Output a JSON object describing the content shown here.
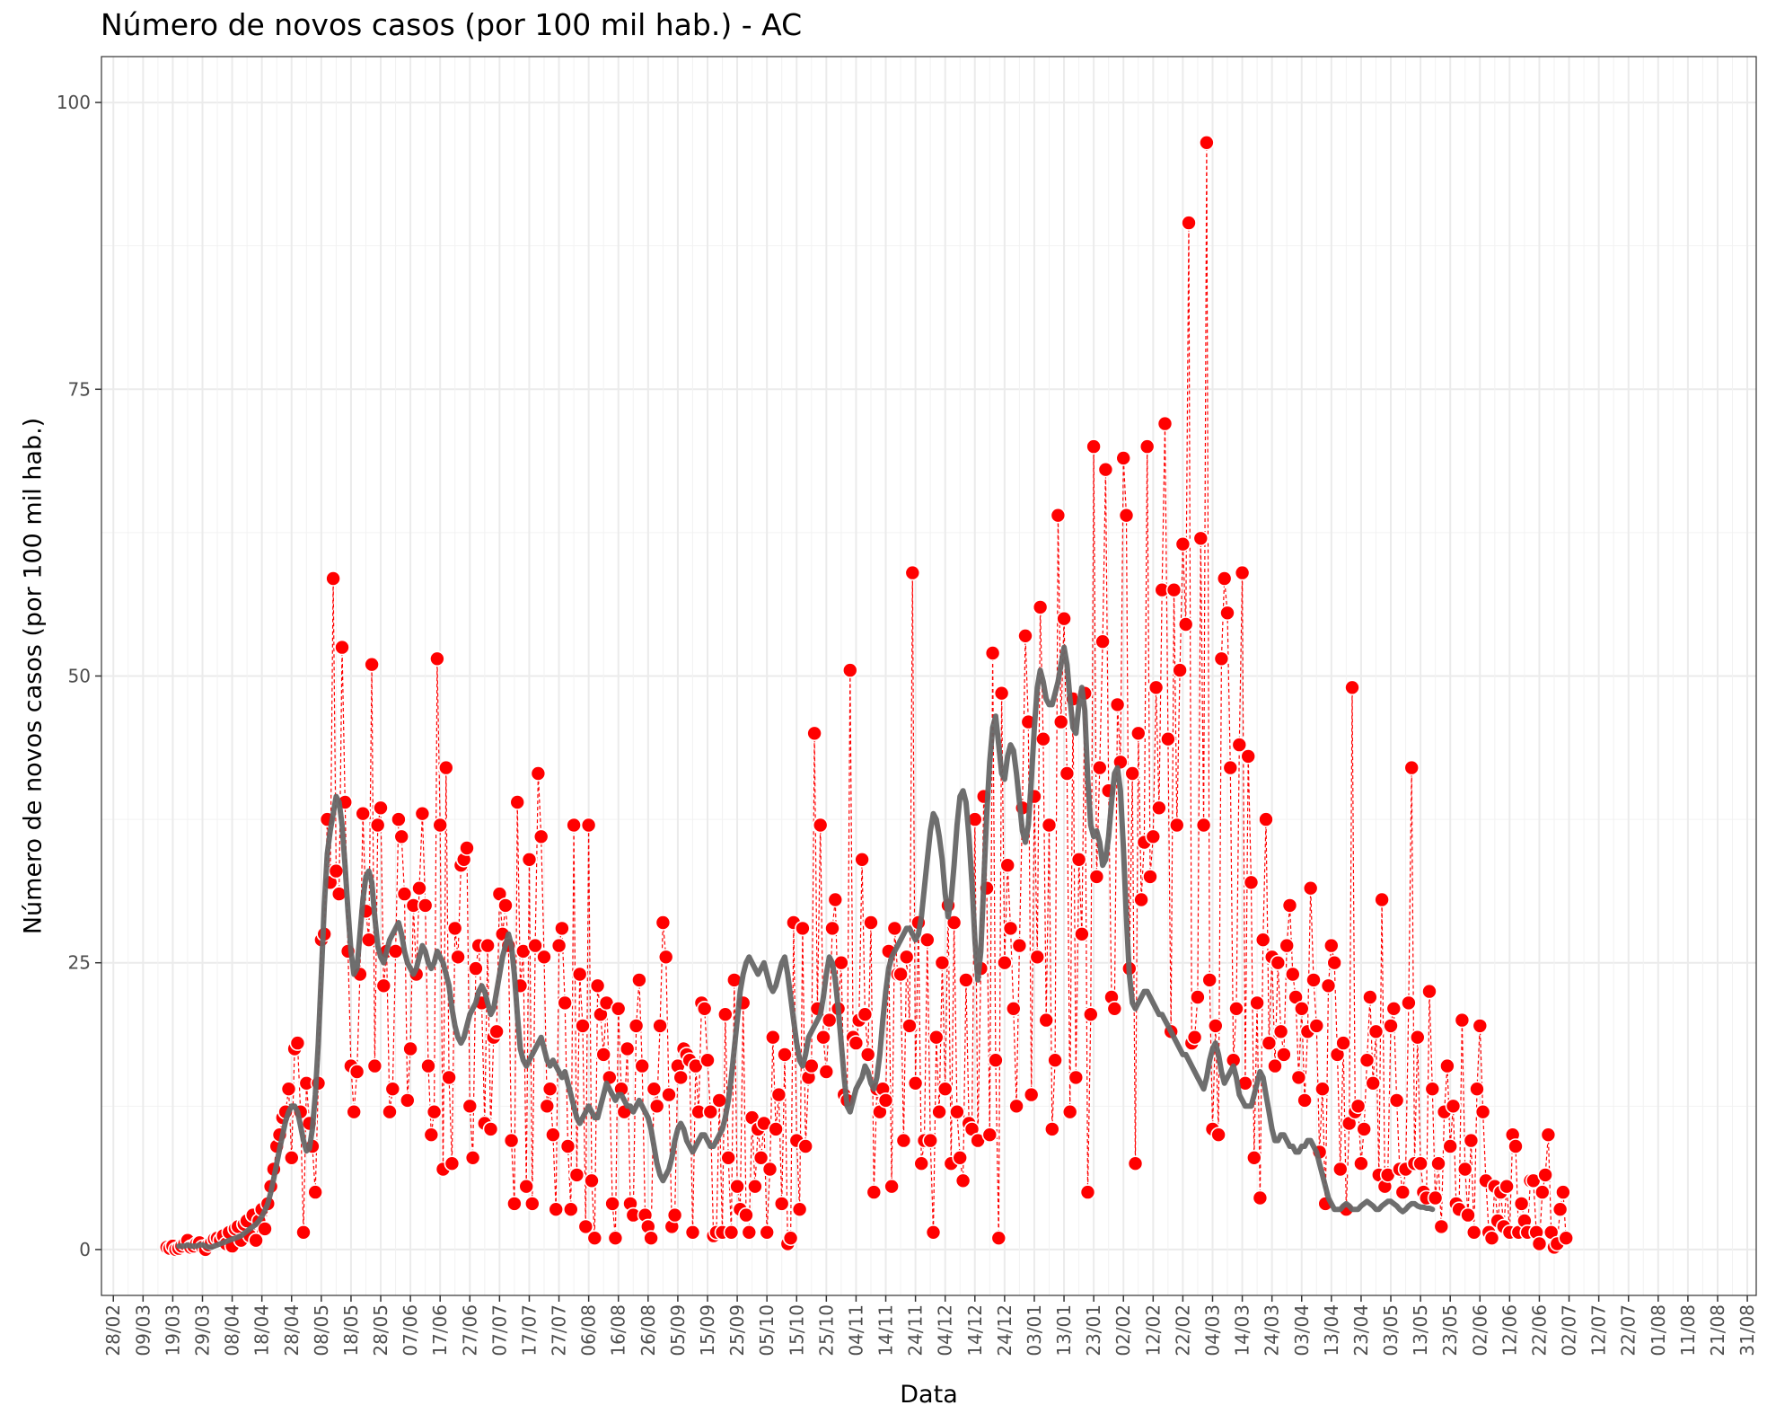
{
  "chart_data": {
    "type": "line",
    "title": "Número de novos casos (por 100 mil hab.) - AC",
    "xlabel": "Data",
    "ylabel": "Número de novos casos (por 100 mil hab.)",
    "ylim": [
      0,
      100
    ],
    "yticks": [
      0,
      25,
      50,
      75,
      100
    ],
    "xlim": [
      "2020-02-24",
      "2021-09-03"
    ],
    "xticks": [
      "2020-02-28",
      "2020-03-09",
      "2020-03-19",
      "2020-03-29",
      "2020-04-08",
      "2020-04-18",
      "2020-04-28",
      "2020-05-08",
      "2020-05-18",
      "2020-05-28",
      "2020-06-07",
      "2020-06-17",
      "2020-06-27",
      "2020-07-07",
      "2020-07-17",
      "2020-07-27",
      "2020-08-06",
      "2020-08-16",
      "2020-08-26",
      "2020-09-05",
      "2020-09-15",
      "2020-09-25",
      "2020-10-05",
      "2020-10-15",
      "2020-10-25",
      "2020-11-04",
      "2020-11-14",
      "2020-11-24",
      "2020-12-04",
      "2020-12-14",
      "2020-12-24",
      "2021-01-03",
      "2021-01-13",
      "2021-01-23",
      "2021-02-02",
      "2021-02-12",
      "2021-02-22",
      "2021-03-04",
      "2021-03-14",
      "2021-03-24",
      "2021-04-03",
      "2021-04-13",
      "2021-04-23",
      "2021-05-03",
      "2021-05-13",
      "2021-05-23",
      "2021-06-02",
      "2021-06-12",
      "2021-06-22",
      "2021-07-02",
      "2021-07-12",
      "2021-07-22",
      "2021-08-01",
      "2021-08-11",
      "2021-08-21",
      "2021-08-31"
    ],
    "xtick_labels": [
      "28/02",
      "09/03",
      "19/03",
      "29/03",
      "08/04",
      "18/04",
      "28/04",
      "08/05",
      "18/05",
      "28/05",
      "07/06",
      "17/06",
      "27/06",
      "07/07",
      "17/07",
      "27/07",
      "06/08",
      "16/08",
      "26/08",
      "05/09",
      "15/09",
      "25/09",
      "05/10",
      "15/10",
      "25/10",
      "04/11",
      "14/11",
      "24/11",
      "04/12",
      "14/12",
      "24/12",
      "03/01",
      "13/01",
      "23/01",
      "02/02",
      "12/02",
      "22/02",
      "04/03",
      "14/03",
      "24/03",
      "03/04",
      "13/04",
      "23/04",
      "03/05",
      "13/05",
      "23/05",
      "02/06",
      "12/06",
      "22/06",
      "02/07",
      "12/07",
      "22/07",
      "01/08",
      "11/08",
      "21/08",
      "31/08"
    ],
    "grid": true,
    "legend": "none",
    "series": [
      {
        "style": "points-with-dashed-line",
        "color": "#ff0000",
        "x_start": "2020-03-17",
        "x_step_days": 1,
        "values": [
          0.2,
          0.1,
          0.3,
          0.0,
          0.1,
          0.3,
          0.5,
          0.8,
          0.2,
          0.3,
          0.5,
          0.6,
          0.2,
          0.0,
          0.4,
          0.6,
          0.9,
          1.0,
          0.8,
          1.2,
          0.5,
          1.5,
          0.3,
          1.8,
          2.0,
          0.8,
          2.2,
          2.5,
          1.2,
          3.0,
          0.8,
          2.5,
          3.5,
          1.8,
          4.0,
          5.5,
          7.0,
          9.0,
          10.0,
          11.5,
          12.0,
          14.0,
          8.0,
          17.5,
          18.0,
          12.0,
          1.5,
          14.5,
          11.0,
          9.0,
          5.0,
          14.5,
          27.0,
          27.5,
          37.5,
          32.0,
          58.5,
          33.0,
          31.0,
          52.5,
          39.0,
          26.0,
          16.0,
          12.0,
          15.5,
          24.0,
          38.0,
          29.5,
          27.0,
          51.0,
          16.0,
          37.0,
          38.5,
          23.0,
          26.0,
          12.0,
          14.0,
          26.0,
          37.5,
          36.0,
          31.0,
          13.0,
          17.5,
          30.0,
          24.0,
          31.5,
          38.0,
          30.0,
          16.0,
          10.0,
          12.0,
          51.5,
          37.0,
          7.0,
          42.0,
          15.0,
          7.5,
          28.0,
          25.5,
          33.5,
          34.0,
          35.0,
          12.5,
          8.0,
          24.5,
          26.5,
          21.5,
          11.0,
          26.5,
          10.5,
          18.5,
          19.0,
          31.0,
          27.5,
          30.0,
          26.5,
          9.5,
          4.0,
          39.0,
          23.0,
          26.0,
          5.5,
          34.0,
          4.0,
          26.5,
          41.5,
          36.0,
          25.5,
          12.5,
          14.0,
          10.0,
          3.5,
          26.5,
          28.0,
          21.5,
          9.0,
          3.5,
          37.0,
          6.5,
          24.0,
          19.5,
          2.0,
          37.0,
          6.0,
          1.0,
          23.0,
          20.5,
          17.0,
          21.5,
          15.0,
          4.0,
          1.0,
          21.0,
          14.0,
          12.0,
          17.5,
          4.0,
          3.0,
          19.5,
          23.5,
          16.0,
          3.0,
          2.0,
          1.0,
          14.0,
          12.5,
          19.5,
          28.5,
          25.5,
          13.5,
          2.0,
          3.0,
          16.0,
          15.0,
          17.5,
          17.0,
          16.5,
          1.5,
          16.0,
          12.0,
          21.5,
          21.0,
          16.5,
          12.0,
          1.2,
          1.5,
          13.0,
          1.5,
          20.5,
          8.0,
          1.5,
          23.5,
          5.5,
          3.5,
          21.5,
          3.0,
          1.5,
          11.5,
          5.5,
          10.5,
          8.0,
          11.0,
          1.5,
          7.0,
          18.5,
          10.5,
          13.5,
          4.0,
          17.0,
          0.5,
          1.0,
          28.5,
          9.5,
          3.5,
          28.0,
          9.0,
          15.0,
          16.0,
          45.0,
          21.0,
          37.0,
          18.5,
          15.5,
          20.0,
          28.0,
          30.5,
          21.0,
          25.0,
          13.5,
          13.0,
          50.5,
          18.5,
          18.0,
          20.0,
          34.0,
          20.5,
          17.0,
          28.5,
          5.0,
          14.0,
          12.0,
          14.0,
          13.0,
          26.0,
          5.5,
          28.0,
          24.0,
          24.0,
          9.5,
          25.5,
          19.5,
          59.0,
          14.5,
          28.5,
          7.5,
          9.5,
          27.0,
          9.5,
          1.5,
          18.5,
          12.0,
          25.0,
          14.0,
          30.0,
          7.5,
          28.5,
          12.0,
          8.0,
          6.0,
          23.5,
          11.0,
          10.5,
          37.5,
          9.5,
          24.5,
          39.5,
          31.5,
          10.0,
          52.0,
          16.5,
          1.0,
          48.5,
          25.0,
          33.5,
          28.0,
          21.0,
          12.5,
          26.5,
          38.5,
          53.5,
          46.0,
          13.5,
          39.5,
          25.5,
          56.0,
          44.5,
          20.0,
          37.0,
          10.5,
          16.5,
          64.0,
          46.0,
          55.0,
          41.5,
          12.0,
          48.0,
          15.0,
          34.0,
          27.5,
          48.5,
          5.0,
          20.5,
          70.0,
          32.5,
          42.0,
          53.0,
          68.0,
          40.0,
          22.0,
          21.0,
          47.5,
          42.5,
          69.0,
          64.0,
          24.5,
          41.5,
          7.5,
          45.0,
          30.5,
          35.5,
          70.0,
          32.5,
          36.0,
          49.0,
          38.5,
          57.5,
          72.0,
          44.5,
          19.0,
          57.5,
          37.0,
          50.5,
          61.5,
          54.5,
          89.5,
          18.0,
          18.5,
          22.0,
          62.0,
          37.0,
          96.5,
          23.5,
          10.5,
          19.5,
          10.0,
          51.5,
          58.5,
          55.5,
          42.0,
          16.5,
          21.0,
          44.0,
          59.0,
          14.5,
          43.0,
          32.0,
          8.0,
          21.5,
          4.5,
          27.0,
          37.5,
          18.0,
          25.5,
          16.0,
          25.0,
          19.0,
          17.0,
          26.5,
          30.0,
          24.0,
          22.0,
          15.0,
          21.0,
          13.0,
          19.0,
          31.5,
          23.5,
          19.5,
          8.5,
          14.0,
          4.0,
          23.0,
          26.5,
          25.0,
          17.0,
          7.0,
          18.0,
          3.5,
          11.0,
          49.0,
          12.0,
          12.5,
          7.5,
          10.5,
          16.5,
          22.0,
          14.5,
          19.0,
          6.5,
          30.5,
          5.5,
          6.5,
          19.5,
          21.0,
          13.0,
          7.0,
          5.0,
          7.0,
          21.5,
          42.0,
          7.5,
          18.5,
          7.5,
          5.0,
          4.5,
          22.5,
          14.0,
          4.5,
          7.5,
          2.0,
          12.0,
          16.0,
          9.0,
          12.5,
          4.0,
          3.5,
          20.0,
          7.0,
          3.0,
          9.5,
          1.5,
          14.0,
          19.5,
          12.0,
          6.0,
          1.5,
          1.0,
          5.5,
          2.5,
          5.0,
          2.0,
          5.5,
          1.5,
          10.0,
          9.0,
          1.5,
          4.0,
          2.5,
          1.5,
          6.0,
          6.0,
          1.5,
          0.5,
          5.0,
          6.5,
          10.0,
          1.5,
          0.2,
          0.5,
          3.5,
          5.0,
          1.0
        ]
      },
      {
        "style": "moving-average-line",
        "color": "#666666",
        "x_start": "2020-03-21",
        "x_step_days": 1,
        "values": [
          0.3,
          0.3,
          0.3,
          0.4,
          0.3,
          0.3,
          0.3,
          0.4,
          0.4,
          0.3,
          0.2,
          0.2,
          0.3,
          0.4,
          0.5,
          0.6,
          0.7,
          0.8,
          0.9,
          1.0,
          1.1,
          1.2,
          1.4,
          1.6,
          1.8,
          2.0,
          2.2,
          2.5,
          2.9,
          3.4,
          4.0,
          5.0,
          6.2,
          7.5,
          8.8,
          10.0,
          11.2,
          12.0,
          12.5,
          12.5,
          12.0,
          10.8,
          9.5,
          8.6,
          8.8,
          10.5,
          13.5,
          18.0,
          24.0,
          30.0,
          34.5,
          36.5,
          38.0,
          39.5,
          39.0,
          37.0,
          33.5,
          29.5,
          26.0,
          24.0,
          24.5,
          27.5,
          30.5,
          32.5,
          33.0,
          32.0,
          29.0,
          26.5,
          25.5,
          25.0,
          26.0,
          27.0,
          27.5,
          28.0,
          28.5,
          27.5,
          26.0,
          25.0,
          24.5,
          24.0,
          24.5,
          25.5,
          26.5,
          26.0,
          25.0,
          24.5,
          25.0,
          26.0,
          25.5,
          25.0,
          24.0,
          23.0,
          21.0,
          19.5,
          18.5,
          18.0,
          18.5,
          19.5,
          20.5,
          21.0,
          21.5,
          22.5,
          23.0,
          22.5,
          21.5,
          20.5,
          21.0,
          22.5,
          24.0,
          25.5,
          26.5,
          27.5,
          26.5,
          24.0,
          20.5,
          17.5,
          16.5,
          16.0,
          16.5,
          17.0,
          17.5,
          18.0,
          18.5,
          17.5,
          16.5,
          16.0,
          16.5,
          16.0,
          15.5,
          15.0,
          15.5,
          14.5,
          13.5,
          12.5,
          11.5,
          11.0,
          11.5,
          12.0,
          12.5,
          12.0,
          11.5,
          11.5,
          12.5,
          13.5,
          14.5,
          14.0,
          13.5,
          13.0,
          13.5,
          13.5,
          13.0,
          12.5,
          12.5,
          12.0,
          12.5,
          13.0,
          12.5,
          12.0,
          11.5,
          10.5,
          9.0,
          7.5,
          6.5,
          6.0,
          6.5,
          7.0,
          8.0,
          9.5,
          10.5,
          11.0,
          10.5,
          9.5,
          9.0,
          8.5,
          9.0,
          9.5,
          10.0,
          10.0,
          9.5,
          9.0,
          9.0,
          9.5,
          10.0,
          10.5,
          11.5,
          13.0,
          15.0,
          17.5,
          20.0,
          22.5,
          24.0,
          25.0,
          25.5,
          25.0,
          24.5,
          24.0,
          24.5,
          25.0,
          24.0,
          23.0,
          22.5,
          23.0,
          24.0,
          25.0,
          25.5,
          24.0,
          22.0,
          20.0,
          18.0,
          16.5,
          16.0,
          17.0,
          18.5,
          19.0,
          19.5,
          20.0,
          20.5,
          22.0,
          24.0,
          25.5,
          25.0,
          23.5,
          21.0,
          18.0,
          15.0,
          12.5,
          12.0,
          13.0,
          14.0,
          14.5,
          15.0,
          16.0,
          15.5,
          14.5,
          14.0,
          15.0,
          17.0,
          20.0,
          22.5,
          24.5,
          25.5,
          26.0,
          26.5,
          27.0,
          27.5,
          28.0,
          28.0,
          27.5,
          27.0,
          27.5,
          29.0,
          31.5,
          34.0,
          36.5,
          38.0,
          37.5,
          36.0,
          34.0,
          31.0,
          29.0,
          30.5,
          33.5,
          37.0,
          39.5,
          40.0,
          39.0,
          36.0,
          32.0,
          27.0,
          23.5,
          26.0,
          32.0,
          38.0,
          42.5,
          45.5,
          46.5,
          44.0,
          41.5,
          41.0,
          43.0,
          44.0,
          43.5,
          41.5,
          39.0,
          36.5,
          35.5,
          37.0,
          41.0,
          45.5,
          49.0,
          50.5,
          49.5,
          48.0,
          47.5,
          47.5,
          48.5,
          49.5,
          51.0,
          52.5,
          51.0,
          48.0,
          45.5,
          45.0,
          47.5,
          49.0,
          47.0,
          41.0,
          37.0,
          36.0,
          36.5,
          35.5,
          33.5,
          34.0,
          36.0,
          39.0,
          41.5,
          42.0,
          40.0,
          35.0,
          29.0,
          24.0,
          21.5,
          21.0,
          21.5,
          22.0,
          22.5,
          22.5,
          22.0,
          21.5,
          21.0,
          20.5,
          20.5,
          20.0,
          19.5,
          19.0,
          18.5,
          18.0,
          17.5,
          17.0,
          17.0,
          16.5,
          16.0,
          15.5,
          15.0,
          14.5,
          14.0,
          15.0,
          16.5,
          17.5,
          18.0,
          17.0,
          15.5,
          14.5,
          15.0,
          15.5,
          16.0,
          15.0,
          13.5,
          13.0,
          12.5,
          12.5,
          12.5,
          13.5,
          14.5,
          15.5,
          15.0,
          13.5,
          12.0,
          10.5,
          9.5,
          9.5,
          10.0,
          10.0,
          9.5,
          9.0,
          9.0,
          8.5,
          8.5,
          9.0,
          9.0,
          9.5,
          9.5,
          9.0,
          8.5,
          7.5,
          6.5,
          5.5,
          4.5,
          4.0,
          3.5,
          3.5,
          3.5,
          3.8,
          4.0,
          3.8,
          3.5,
          3.5,
          3.5,
          3.8,
          4.0,
          4.2,
          4.0,
          3.8,
          3.5,
          3.5,
          3.8,
          4.0,
          4.2,
          4.2,
          4.0,
          3.8,
          3.5,
          3.3,
          3.5,
          3.8,
          4.0,
          4.0,
          3.8,
          3.7,
          3.7,
          3.6,
          3.6,
          3.5
        ]
      }
    ]
  }
}
